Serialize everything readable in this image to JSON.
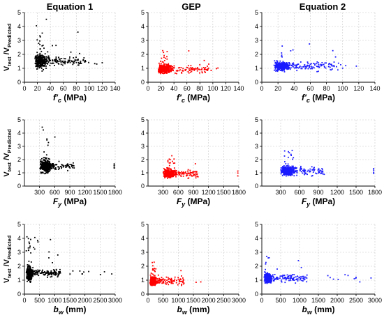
{
  "column_titles": [
    "Equation 1",
    "GEP",
    "Equation 2"
  ],
  "y_label": {
    "main": "V",
    "sub1": "test",
    "slash": " /V",
    "sub2": "Predicted"
  },
  "chart_data": [
    {
      "type": "scatter",
      "row": 0,
      "x_variable": "f'c",
      "x_label": {
        "prefix": "f′",
        "sub": "c",
        "unit": " (MPa)"
      },
      "xlim": [
        0,
        140
      ],
      "x_ticks": [
        "0",
        "20",
        "40",
        "60",
        "80",
        "100",
        "120",
        "140"
      ],
      "ylim": [
        0,
        5
      ],
      "y_ticks": [
        "0",
        "1",
        "2",
        "3",
        "4",
        "5"
      ],
      "panels": [
        {
          "name": "Equation 1",
          "color": "#000000",
          "seed": 11,
          "n": 420
        },
        {
          "name": "GEP",
          "color": "#ff0000",
          "seed": 12,
          "n": 420
        },
        {
          "name": "Equation 2",
          "color": "#1a1aff",
          "seed": 13,
          "n": 420
        }
      ]
    },
    {
      "type": "scatter",
      "row": 1,
      "x_variable": "Fy",
      "x_label": {
        "prefix": "F",
        "sub": "y",
        "unit": " (MPa)"
      },
      "xlim": [
        0,
        1800
      ],
      "x_ticks": [
        "300",
        "600",
        "900",
        "1200",
        "1500",
        "1800"
      ],
      "ylim": [
        0,
        5
      ],
      "y_ticks": [
        "0",
        "1",
        "2",
        "3",
        "4",
        "5"
      ],
      "panels": [
        {
          "name": "Equation 1",
          "color": "#000000",
          "seed": 21,
          "n": 420
        },
        {
          "name": "GEP",
          "color": "#ff0000",
          "seed": 22,
          "n": 420
        },
        {
          "name": "Equation 2",
          "color": "#1a1aff",
          "seed": 23,
          "n": 420
        }
      ]
    },
    {
      "type": "scatter",
      "row": 2,
      "x_variable": "bw",
      "x_label": {
        "prefix": "b",
        "sub": "w",
        "unit": " (mm)"
      },
      "xlim": [
        0,
        3000
      ],
      "x_ticks": [
        "0",
        "500",
        "1000",
        "1500",
        "2000",
        "2500",
        "3000"
      ],
      "ylim": [
        0,
        5
      ],
      "y_ticks": [
        "0",
        "1",
        "2",
        "3",
        "4",
        "5"
      ],
      "panels": [
        {
          "name": "Equation 1",
          "color": "#000000",
          "seed": 31,
          "n": 420
        },
        {
          "name": "GEP",
          "color": "#ff0000",
          "seed": 32,
          "n": 420
        },
        {
          "name": "Equation 2",
          "color": "#1a1aff",
          "seed": 33,
          "n": 420
        }
      ]
    }
  ]
}
